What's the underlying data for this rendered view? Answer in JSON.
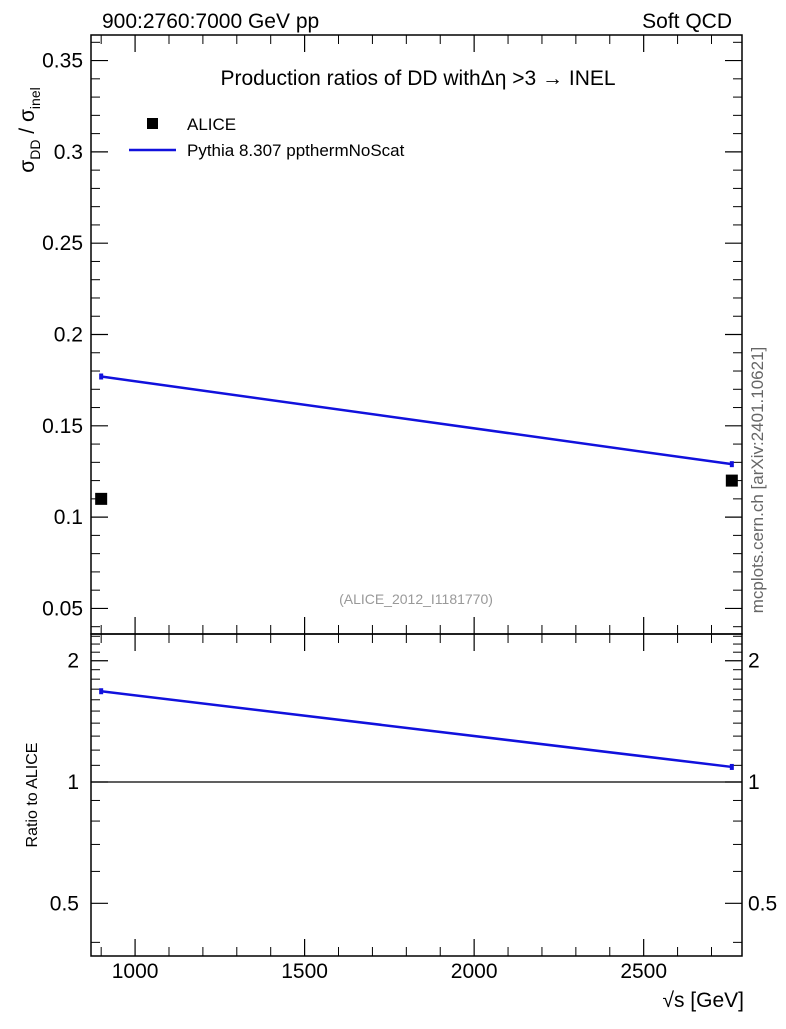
{
  "header": {
    "left": "900:2760:7000 GeV pp",
    "right": "Soft QCD"
  },
  "side_label": "mcplots.cern.ch [arXiv:2401.10621]",
  "chart_data": {
    "type": "line",
    "title": "Production ratios of DD withΔη >3 → INEL",
    "watermark": "(ALICE_2012_I1181770)",
    "xlabel": "√s [GeV]",
    "ylabel": {
      "base": "σ",
      "sub": "DD",
      "sep": " / ",
      "base2": "σ",
      "sub2": "inel"
    },
    "xlim": [
      870,
      2790
    ],
    "ylim": [
      0.036,
      0.364
    ],
    "x_ticks": [
      1000,
      1500,
      2000,
      2500
    ],
    "y_ticks": [
      0.05,
      0.1,
      0.15,
      0.2,
      0.25,
      0.3,
      0.35
    ],
    "legend_placement": "top-left",
    "series": [
      {
        "name": "ALICE",
        "kind": "points",
        "color": "#000000",
        "x": [
          900,
          2760
        ],
        "y": [
          0.11,
          0.12
        ]
      },
      {
        "name": "Pythia 8.307 ppthermNoScat",
        "kind": "line",
        "color": "#1111dd",
        "x": [
          900,
          2760
        ],
        "y": [
          0.177,
          0.129
        ]
      }
    ],
    "ratio": {
      "ylabel": "Ratio to ALICE",
      "ylim": [
        0.37,
        2.33
      ],
      "y_ticks": [
        0.5,
        1,
        2
      ],
      "reference": 1,
      "x": [
        900,
        2760
      ],
      "y": [
        1.68,
        1.09
      ]
    }
  }
}
